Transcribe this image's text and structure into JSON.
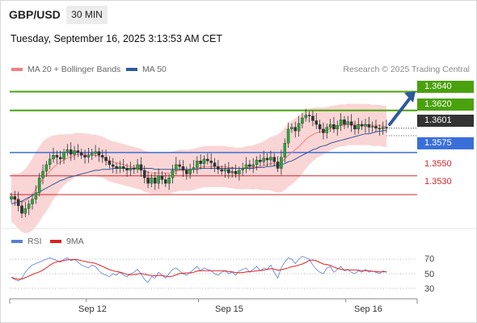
{
  "header": {
    "pair": "GBP/USD",
    "timeframe": "30 MIN",
    "datetime": "Tuesday, September 16, 2025 3:13:53 AM CET"
  },
  "legend": {
    "ma20_label": "MA 20 + Bollinger Bands",
    "ma20_color": "#f08080",
    "ma50_label": "MA 50",
    "ma50_color": "#2e5a99",
    "credit": "Research © 2025 Trading Central"
  },
  "rsi_legend": {
    "rsi_label": "RSI",
    "rsi_color": "#5b7fd6",
    "ma9_label": "9MA",
    "ma9_color": "#e02020"
  },
  "chart_data": {
    "type": "candlestick",
    "y_range": [
      1.3492,
      1.3656
    ],
    "levels": [
      {
        "value": 1.364,
        "label": "1.3640",
        "kind": "target",
        "color": "#4aa10f"
      },
      {
        "value": 1.362,
        "label": "1.3620",
        "kind": "resistance",
        "color": "#4aa10f"
      },
      {
        "value": 1.3601,
        "label": "1.3601",
        "kind": "last",
        "color": "#333333"
      },
      {
        "value": 1.3575,
        "label": "1.3575",
        "kind": "pivot",
        "color": "#3a6fd9"
      },
      {
        "value": 1.355,
        "label": "1.3550",
        "kind": "support",
        "color": "#d8232a"
      },
      {
        "value": 1.353,
        "label": "1.3530",
        "kind": "support",
        "color": "#d8232a"
      }
    ],
    "close_series": [
      1.3528,
      1.3525,
      1.3518,
      1.351,
      1.3515,
      1.352,
      1.3525,
      1.3532,
      1.3548,
      1.3555,
      1.3562,
      1.3568,
      1.3572,
      1.357,
      1.3568,
      1.3575,
      1.3578,
      1.3573,
      1.3577,
      1.3575,
      1.3572,
      1.357,
      1.3572,
      1.3574,
      1.3576,
      1.3572,
      1.357,
      1.3566,
      1.3562,
      1.356,
      1.3558,
      1.356,
      1.3558,
      1.3556,
      1.3558,
      1.3557,
      1.3562,
      1.3556,
      1.3548,
      1.3542,
      1.3548,
      1.3542,
      1.355,
      1.3546,
      1.3542,
      1.3548,
      1.3556,
      1.3562,
      1.356,
      1.3556,
      1.3552,
      1.3557,
      1.3559,
      1.3566,
      1.3563,
      1.3568,
      1.3566,
      1.3564,
      1.356,
      1.3557,
      1.3555,
      1.3557,
      1.3553,
      1.3555,
      1.3552,
      1.3556,
      1.3558,
      1.3562,
      1.356,
      1.3562,
      1.3567,
      1.3565,
      1.3569,
      1.3567,
      1.357,
      1.3565,
      1.3558,
      1.357,
      1.3585,
      1.36,
      1.3602,
      1.3598,
      1.3606,
      1.3612,
      1.3615,
      1.3614,
      1.3609,
      1.3605,
      1.36,
      1.3596,
      1.3602,
      1.3605,
      1.36,
      1.3604,
      1.361,
      1.3605,
      1.3608,
      1.3604,
      1.36,
      1.3605,
      1.3603,
      1.3605,
      1.3602,
      1.3603,
      1.3601,
      1.36,
      1.3602,
      1.3601
    ],
    "ma20": [
      1.3527,
      1.3525,
      1.3523,
      1.3522,
      1.3523,
      1.3526,
      1.353,
      1.3536,
      1.3541,
      1.3547,
      1.3551,
      1.3555,
      1.3559,
      1.3562,
      1.3565,
      1.3567,
      1.3569,
      1.357,
      1.3572,
      1.3573,
      1.3573,
      1.3573,
      1.3573,
      1.3572,
      1.3572,
      1.3571,
      1.357,
      1.3568,
      1.3566,
      1.3565,
      1.3564,
      1.3563,
      1.3562,
      1.3561,
      1.356,
      1.3559,
      1.3558,
      1.3557,
      1.3555,
      1.3554,
      1.3553,
      1.3553,
      1.3553,
      1.3553,
      1.3553,
      1.3553,
      1.3554,
      1.3555,
      1.3556,
      1.3556,
      1.3556,
      1.3556,
      1.3557,
      1.3558,
      1.3559,
      1.356,
      1.356,
      1.356,
      1.356,
      1.356,
      1.356,
      1.356,
      1.3559,
      1.3559,
      1.3558,
      1.3558,
      1.3558,
      1.3559,
      1.3559,
      1.3559,
      1.356,
      1.356,
      1.3561,
      1.3562,
      1.3563,
      1.3563,
      1.3563,
      1.3565,
      1.3568,
      1.3572,
      1.3575,
      1.3578,
      1.3581,
      1.3585,
      1.3589,
      1.3592,
      1.3594,
      1.3596,
      1.3597,
      1.3598,
      1.3599,
      1.3601,
      1.3602,
      1.3603,
      1.3604,
      1.3604,
      1.3605,
      1.3605,
      1.3605,
      1.3605,
      1.3605,
      1.3605,
      1.3605,
      1.3604,
      1.3604,
      1.3604,
      1.3603,
      1.3603
    ],
    "ma50": [
      1.352,
      1.3521,
      1.3522,
      1.3523,
      1.3525,
      1.3527,
      1.3529,
      1.3531,
      1.3533,
      1.3535,
      1.3537,
      1.3539,
      1.3541,
      1.3543,
      1.3545,
      1.3546,
      1.3548,
      1.3549,
      1.355,
      1.3551,
      1.3552,
      1.3553,
      1.3554,
      1.3555,
      1.3556,
      1.3556,
      1.3557,
      1.3557,
      1.3557,
      1.3558,
      1.3558,
      1.3558,
      1.3558,
      1.3558,
      1.3558,
      1.3558,
      1.3558,
      1.3558,
      1.3558,
      1.3558,
      1.3558,
      1.3557,
      1.3557,
      1.3557,
      1.3557,
      1.3557,
      1.3557,
      1.3557,
      1.3557,
      1.3557,
      1.3557,
      1.3557,
      1.3557,
      1.3557,
      1.3558,
      1.3558,
      1.3558,
      1.3558,
      1.3558,
      1.3558,
      1.3558,
      1.3558,
      1.3558,
      1.3558,
      1.3558,
      1.3558,
      1.3558,
      1.3558,
      1.3558,
      1.3558,
      1.3559,
      1.3559,
      1.3559,
      1.356,
      1.356,
      1.3561,
      1.3561,
      1.3562,
      1.3563,
      1.3565,
      1.3566,
      1.3568,
      1.357,
      1.3572,
      1.3574,
      1.3576,
      1.3578,
      1.3579,
      1.3581,
      1.3582,
      1.3583,
      1.3585,
      1.3586,
      1.3587,
      1.3588,
      1.3589,
      1.359,
      1.3591,
      1.3592,
      1.3593,
      1.3594,
      1.3595,
      1.3595,
      1.3596,
      1.3597,
      1.3598,
      1.3598,
      1.3599
    ],
    "rsi": [
      45,
      42,
      40,
      44,
      52,
      58,
      62,
      64,
      66,
      68,
      70,
      72,
      70,
      68,
      66,
      70,
      72,
      68,
      70,
      66,
      62,
      60,
      58,
      62,
      60,
      54,
      50,
      48,
      46,
      50,
      48,
      52,
      48,
      46,
      50,
      52,
      56,
      50,
      42,
      38,
      46,
      44,
      52,
      48,
      44,
      50,
      56,
      58,
      54,
      50,
      48,
      52,
      56,
      60,
      54,
      58,
      56,
      54,
      50,
      48,
      52,
      54,
      50,
      52,
      48,
      54,
      56,
      58,
      52,
      56,
      60,
      54,
      58,
      56,
      62,
      52,
      44,
      58,
      66,
      72,
      70,
      64,
      70,
      74,
      72,
      70,
      62,
      56,
      52,
      50,
      58,
      60,
      52,
      56,
      60,
      54,
      56,
      52,
      50,
      54,
      52,
      56,
      52,
      54,
      52,
      50,
      54,
      52
    ],
    "rsi_levels": [
      70,
      50,
      30
    ],
    "rsi_range": [
      20,
      80
    ],
    "x_tick_labels": [
      {
        "label": "Sep 12",
        "index": 20
      },
      {
        "label": "Sep 15",
        "index": 52
      },
      {
        "label": "Sep 16",
        "index": 94
      }
    ]
  },
  "rsi_axis": {
    "t70": "70",
    "t50": "50",
    "t30": "30"
  }
}
